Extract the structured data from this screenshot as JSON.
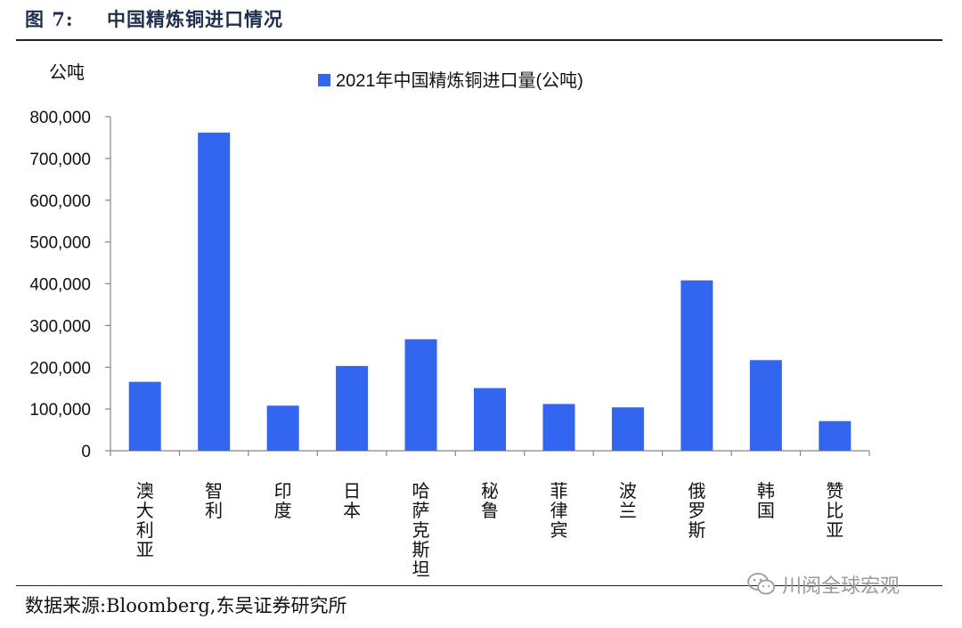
{
  "header": {
    "figure_number": "图 7:",
    "figure_title": "中国精炼铜进口情况"
  },
  "footer": {
    "source": "数据来源:Bloomberg,东吴证券研究所"
  },
  "watermark": {
    "icon": "wechat-icon",
    "text": "川阅全球宏观"
  },
  "colors": {
    "bar": "#3366ee",
    "axis": "#888888",
    "text": "#111111"
  },
  "chart_data": {
    "type": "bar",
    "ylabel": "公吨",
    "legend": {
      "position": "top-center"
    },
    "ylim": [
      0,
      800000
    ],
    "yticks": [
      0,
      100000,
      200000,
      300000,
      400000,
      500000,
      600000,
      700000,
      800000
    ],
    "ytick_labels": [
      "0",
      "100,000",
      "200,000",
      "300,000",
      "400,000",
      "500,000",
      "600,000",
      "700,000",
      "800,000"
    ],
    "grid": false,
    "categories": [
      "澳大利亚",
      "智利",
      "印度",
      "日本",
      "哈萨克斯坦",
      "秘鲁",
      "菲律宾",
      "波兰",
      "俄罗斯",
      "韩国",
      "赞比亚"
    ],
    "series": [
      {
        "name": "2021年中国精炼铜进口量(公吨)",
        "values": [
          165000,
          762000,
          108000,
          203000,
          267000,
          150000,
          112000,
          104000,
          408000,
          217000,
          71000
        ]
      }
    ]
  }
}
